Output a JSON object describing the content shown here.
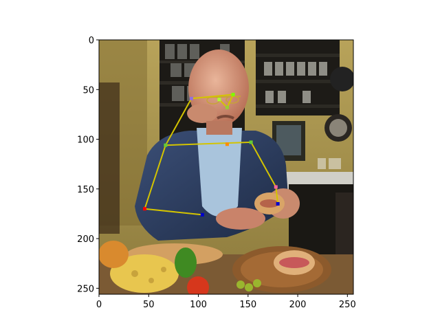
{
  "figure": {
    "type": "image-with-pose-overlay",
    "image_extent": {
      "x": [
        0,
        256
      ],
      "y": [
        256,
        0
      ]
    },
    "x_ticks": [
      0,
      50,
      100,
      150,
      200,
      250
    ],
    "y_ticks": [
      0,
      50,
      100,
      150,
      200,
      250
    ],
    "x_tick_labels": [
      "0",
      "50",
      "100",
      "150",
      "200",
      "250"
    ],
    "y_tick_labels": [
      "0",
      "50",
      "100",
      "150",
      "200",
      "250"
    ],
    "skeleton_color": "#d4c400",
    "keypoints": [
      {
        "id": "nose",
        "x": 129,
        "y": 68,
        "color": "#9acd32"
      },
      {
        "id": "left-eye",
        "x": 135,
        "y": 55,
        "color": "#7fff00"
      },
      {
        "id": "right-eye",
        "x": 121,
        "y": 60,
        "color": "#adff2f"
      },
      {
        "id": "head-left",
        "x": 93,
        "y": 59,
        "color": "#9370db"
      },
      {
        "id": "right-shoulder",
        "x": 67,
        "y": 106,
        "color": "#66cc33"
      },
      {
        "id": "left-shoulder",
        "x": 153,
        "y": 103,
        "color": "#66cc33"
      },
      {
        "id": "neck",
        "x": 129,
        "y": 105,
        "color": "#ff8c00"
      },
      {
        "id": "right-elbow",
        "x": 46,
        "y": 170,
        "color": "#ff0000"
      },
      {
        "id": "right-wrist",
        "x": 104,
        "y": 176,
        "color": "#0000cd"
      },
      {
        "id": "left-elbow",
        "x": 178,
        "y": 148,
        "color": "#ff6699"
      },
      {
        "id": "left-wrist",
        "x": 180,
        "y": 165,
        "color": "#0000cd"
      }
    ],
    "skeleton_lines": [
      [
        "head-left",
        "left-eye"
      ],
      [
        "head-left",
        "right-shoulder"
      ],
      [
        "right-shoulder",
        "left-shoulder"
      ],
      [
        "left-shoulder",
        "left-elbow"
      ],
      [
        "left-elbow",
        "left-wrist"
      ],
      [
        "right-shoulder",
        "right-elbow"
      ],
      [
        "right-elbow",
        "right-wrist"
      ],
      [
        "left-eye",
        "nose"
      ],
      [
        "right-eye",
        "nose"
      ]
    ]
  }
}
